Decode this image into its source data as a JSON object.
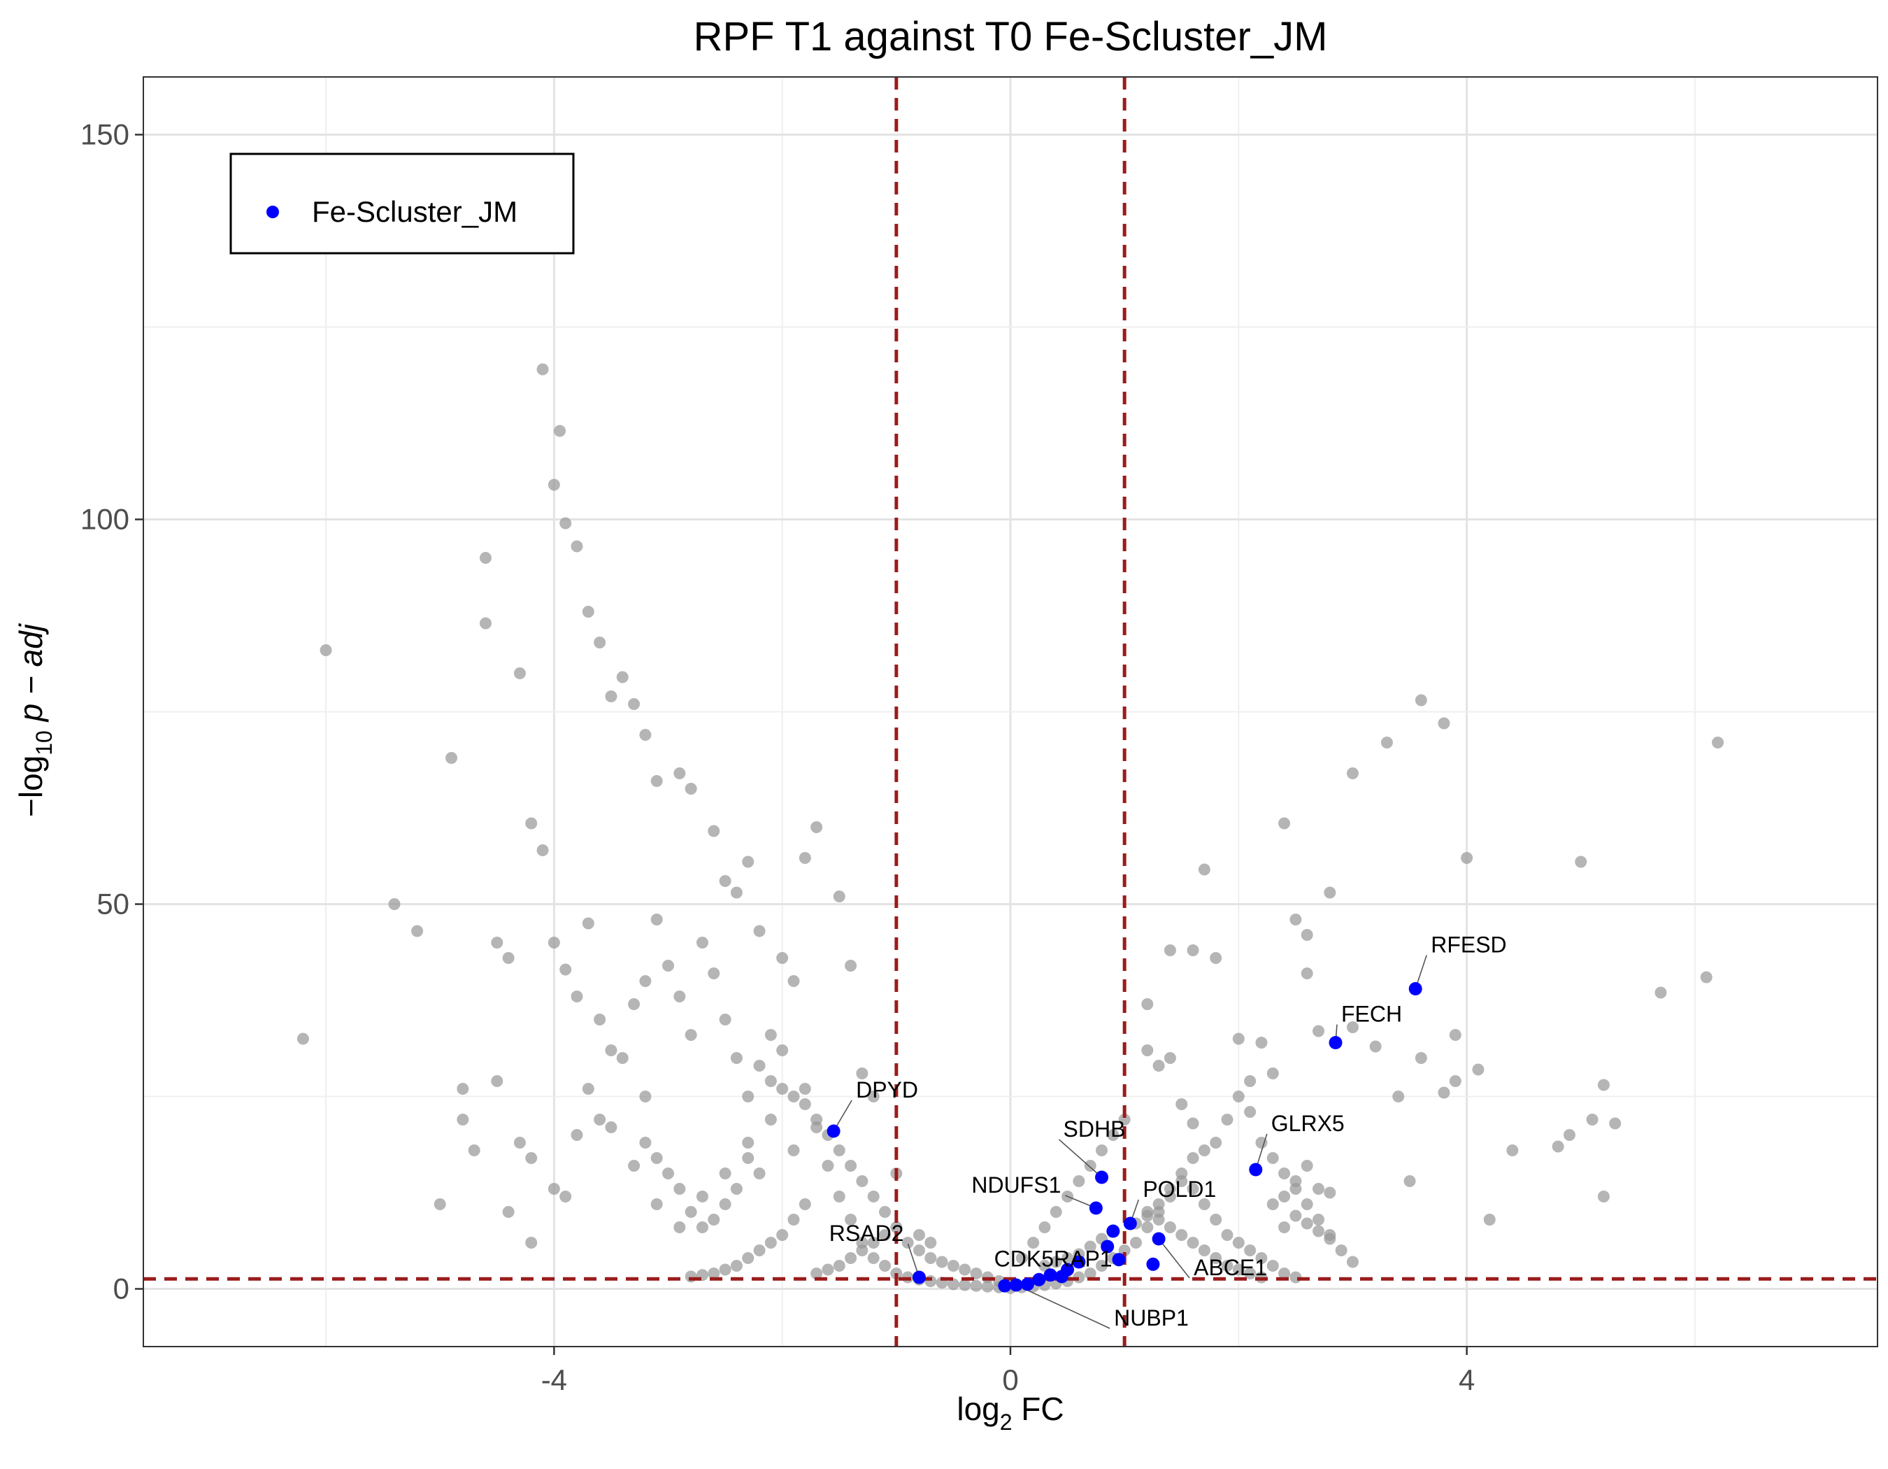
{
  "chart_data": {
    "type": "scatter",
    "title": "RPF T1 against T0 Fe-Scluster_JM",
    "xlabel": {
      "prefix": "log",
      "sub": "2",
      "suffix": " FC"
    },
    "ylabel": {
      "prefix": "−log",
      "sub": "10",
      "suffix": " p − adj"
    },
    "xlim": [
      -7.6,
      7.6
    ],
    "ylim": [
      -7.5,
      157.5
    ],
    "x_ticks": [
      -4,
      0,
      4
    ],
    "x_tick_labels": [
      "-4",
      "0",
      "4"
    ],
    "y_ticks": [
      0,
      50,
      100,
      150
    ],
    "y_tick_labels": [
      "0",
      "50",
      "100",
      "150"
    ],
    "grid": true,
    "thresholds": {
      "x": [
        -1,
        1
      ],
      "y": 1.3,
      "color": "#9b1b1b"
    },
    "legend": {
      "position": "top-left",
      "entries": [
        {
          "name": "Fe-Scluster_JM",
          "color": "#0000ff"
        }
      ]
    },
    "background_color": "#999999",
    "highlight_color": "#0000ff",
    "background_points": [
      [
        -6.2,
        32.5
      ],
      [
        -6.0,
        83
      ],
      [
        -5.4,
        50
      ],
      [
        -5.2,
        46.5
      ],
      [
        -4.9,
        69
      ],
      [
        -4.8,
        26
      ],
      [
        -5.0,
        11
      ],
      [
        -4.6,
        95
      ],
      [
        -4.5,
        45
      ],
      [
        -4.4,
        43
      ],
      [
        -4.2,
        60.5
      ],
      [
        -4.1,
        57
      ],
      [
        -4.1,
        119.5
      ],
      [
        -4.0,
        104.5
      ],
      [
        -3.95,
        111.5
      ],
      [
        -3.9,
        99.5
      ],
      [
        -3.8,
        96.5
      ],
      [
        -3.7,
        88
      ],
      [
        -3.6,
        84
      ],
      [
        -3.5,
        77
      ],
      [
        -3.4,
        79.5
      ],
      [
        -3.3,
        76
      ],
      [
        -3.2,
        72
      ],
      [
        -3.1,
        66
      ],
      [
        -2.9,
        67
      ],
      [
        -2.8,
        65
      ],
      [
        -2.6,
        59.5
      ],
      [
        -2.5,
        53
      ],
      [
        -2.4,
        51.5
      ],
      [
        -2.3,
        55.5
      ],
      [
        -2.2,
        46.5
      ],
      [
        -2.0,
        43
      ],
      [
        -1.9,
        40
      ],
      [
        -1.8,
        56
      ],
      [
        -1.7,
        60
      ],
      [
        -1.5,
        51
      ],
      [
        -1.4,
        42
      ],
      [
        -1.3,
        28
      ],
      [
        -1.2,
        25
      ],
      [
        -1.0,
        15
      ],
      [
        -4.5,
        27
      ],
      [
        -4.3,
        19
      ],
      [
        -4.2,
        17
      ],
      [
        -4.0,
        13
      ],
      [
        -3.9,
        12
      ],
      [
        -3.8,
        20
      ],
      [
        -3.6,
        22
      ],
      [
        -3.5,
        31
      ],
      [
        -3.3,
        37
      ],
      [
        -3.2,
        40
      ],
      [
        -3.1,
        48
      ],
      [
        -3.0,
        42
      ],
      [
        -2.9,
        38
      ],
      [
        -2.8,
        33
      ],
      [
        -2.7,
        45
      ],
      [
        -2.6,
        41
      ],
      [
        -2.5,
        35
      ],
      [
        -2.4,
        30
      ],
      [
        -2.3,
        25
      ],
      [
        -2.2,
        29
      ],
      [
        -2.1,
        33
      ],
      [
        -2.0,
        31
      ],
      [
        -3.9,
        41.5
      ],
      [
        -3.7,
        47.5
      ],
      [
        -4.6,
        86.5
      ],
      [
        -4.3,
        80
      ],
      [
        -4.0,
        45
      ],
      [
        -3.8,
        38
      ],
      [
        -3.6,
        35
      ],
      [
        -3.4,
        30
      ],
      [
        -3.2,
        25
      ],
      [
        -4.8,
        22
      ],
      [
        -4.7,
        18
      ],
      [
        -4.4,
        10
      ],
      [
        -4.2,
        6
      ],
      [
        -3.7,
        26
      ],
      [
        -3.5,
        21
      ],
      [
        -3.3,
        16
      ],
      [
        -3.1,
        11
      ],
      [
        -2.9,
        8
      ],
      [
        -2.7,
        12
      ],
      [
        -2.5,
        15
      ],
      [
        -2.3,
        19
      ],
      [
        -2.1,
        22
      ],
      [
        -1.9,
        18
      ],
      [
        -1.8,
        26
      ],
      [
        -1.7,
        21
      ],
      [
        -1.6,
        16
      ],
      [
        -1.5,
        12
      ],
      [
        -1.4,
        9
      ],
      [
        -1.3,
        6
      ],
      [
        -1.2,
        4
      ],
      [
        -1.1,
        3
      ],
      [
        -1.0,
        2
      ],
      [
        -0.9,
        1.5
      ],
      [
        -0.8,
        1.2
      ],
      [
        -0.7,
        1
      ],
      [
        -0.6,
        0.8
      ],
      [
        -0.5,
        0.6
      ],
      [
        -0.4,
        0.5
      ],
      [
        -0.3,
        0.4
      ],
      [
        -0.2,
        0.3
      ],
      [
        -0.1,
        0.2
      ],
      [
        0.0,
        0.1
      ],
      [
        0.1,
        0.2
      ],
      [
        0.2,
        0.3
      ],
      [
        0.3,
        0.5
      ],
      [
        0.4,
        0.7
      ],
      [
        0.5,
        1
      ],
      [
        0.6,
        1.5
      ],
      [
        0.7,
        2
      ],
      [
        0.8,
        3
      ],
      [
        0.9,
        4
      ],
      [
        1.0,
        5
      ],
      [
        1.1,
        6
      ],
      [
        1.2,
        8
      ],
      [
        1.3,
        10
      ],
      [
        1.4,
        12
      ],
      [
        1.5,
        14
      ],
      [
        1.6,
        13
      ],
      [
        1.7,
        11
      ],
      [
        1.8,
        9
      ],
      [
        1.9,
        7
      ],
      [
        2.0,
        6
      ],
      [
        2.1,
        5
      ],
      [
        2.2,
        4
      ],
      [
        2.3,
        3
      ],
      [
        2.4,
        2
      ],
      [
        2.5,
        1.5
      ],
      [
        1.8,
        19
      ],
      [
        1.9,
        22
      ],
      [
        2.0,
        25
      ],
      [
        2.1,
        23
      ],
      [
        2.2,
        19
      ],
      [
        2.3,
        17
      ],
      [
        2.4,
        15
      ],
      [
        2.5,
        13
      ],
      [
        2.6,
        11
      ],
      [
        2.7,
        9
      ],
      [
        2.8,
        7
      ],
      [
        2.9,
        5
      ],
      [
        3.0,
        3.5
      ],
      [
        1.7,
        54.5
      ],
      [
        1.6,
        44
      ],
      [
        1.8,
        43
      ],
      [
        2.4,
        60.5
      ],
      [
        2.5,
        48
      ],
      [
        2.6,
        46
      ],
      [
        2.8,
        51.5
      ],
      [
        3.0,
        67
      ],
      [
        3.3,
        71
      ],
      [
        3.6,
        76.5
      ],
      [
        3.8,
        73.5
      ],
      [
        4.0,
        56
      ],
      [
        3.0,
        34
      ],
      [
        3.2,
        31.5
      ],
      [
        3.4,
        25
      ],
      [
        3.6,
        30
      ],
      [
        3.9,
        33
      ],
      [
        4.1,
        28.5
      ],
      [
        3.9,
        27
      ],
      [
        4.2,
        9
      ],
      [
        5.0,
        55.5
      ],
      [
        5.1,
        22
      ],
      [
        5.2,
        26.5
      ],
      [
        5.3,
        21.5
      ],
      [
        5.2,
        12
      ],
      [
        4.9,
        20
      ],
      [
        4.8,
        18.5
      ],
      [
        4.4,
        18
      ],
      [
        5.7,
        38.5
      ],
      [
        6.1,
        40.5
      ],
      [
        6.2,
        71
      ],
      [
        3.5,
        14
      ],
      [
        3.8,
        25.5
      ],
      [
        1.4,
        44
      ],
      [
        1.4,
        30
      ],
      [
        1.3,
        29
      ],
      [
        1.2,
        31
      ],
      [
        1.5,
        24
      ],
      [
        1.6,
        21.5
      ],
      [
        2.0,
        32.5
      ],
      [
        2.2,
        32
      ],
      [
        2.3,
        28
      ],
      [
        2.1,
        27
      ],
      [
        2.6,
        41
      ],
      [
        2.7,
        33.5
      ],
      [
        1.2,
        37
      ],
      [
        1.0,
        22
      ],
      [
        0.9,
        20
      ],
      [
        0.8,
        18
      ],
      [
        0.7,
        16
      ],
      [
        0.6,
        14
      ],
      [
        0.5,
        12
      ],
      [
        0.4,
        10
      ],
      [
        0.3,
        8
      ],
      [
        0.2,
        6
      ],
      [
        0.1,
        4
      ],
      [
        -1.1,
        10
      ],
      [
        -1.2,
        12
      ],
      [
        -1.3,
        14
      ],
      [
        -1.4,
        16
      ],
      [
        -1.5,
        18
      ],
      [
        -1.6,
        20
      ],
      [
        -1.7,
        22
      ],
      [
        -1.8,
        24
      ],
      [
        -1.9,
        25
      ],
      [
        -2.0,
        26
      ],
      [
        -2.1,
        27
      ],
      [
        -1.8,
        11
      ],
      [
        -1.9,
        9
      ],
      [
        -2.0,
        7
      ],
      [
        -2.1,
        6
      ],
      [
        -2.2,
        5
      ],
      [
        -2.3,
        4
      ],
      [
        -2.4,
        3
      ],
      [
        -2.5,
        2.5
      ],
      [
        -2.6,
        2
      ],
      [
        -2.7,
        1.8
      ],
      [
        -2.8,
        1.6
      ],
      [
        -0.8,
        5
      ],
      [
        -0.7,
        4
      ],
      [
        -0.6,
        3.5
      ],
      [
        -0.5,
        3
      ],
      [
        -0.4,
        2.5
      ],
      [
        -0.3,
        2
      ],
      [
        -0.2,
        1.5
      ],
      [
        -0.1,
        1
      ],
      [
        0.3,
        3
      ],
      [
        0.4,
        3.5
      ],
      [
        0.5,
        4
      ],
      [
        0.6,
        4.5
      ],
      [
        0.7,
        5.5
      ],
      [
        0.8,
        6.5
      ],
      [
        0.9,
        7.5
      ],
      [
        1.1,
        8.5
      ],
      [
        1.2,
        9.5
      ],
      [
        1.3,
        11
      ],
      [
        1.4,
        13
      ],
      [
        1.5,
        15
      ],
      [
        1.6,
        17
      ],
      [
        1.7,
        18
      ],
      [
        -1.0,
        8
      ],
      [
        -1.1,
        7
      ],
      [
        -1.2,
        6
      ],
      [
        -1.3,
        5
      ],
      [
        -1.4,
        4
      ],
      [
        -1.5,
        3
      ],
      [
        -1.6,
        2.5
      ],
      [
        -1.7,
        2
      ],
      [
        -0.9,
        6
      ],
      [
        -0.8,
        7
      ],
      [
        -0.7,
        6
      ],
      [
        -2.2,
        15
      ],
      [
        -2.3,
        17
      ],
      [
        -2.4,
        13
      ],
      [
        -2.5,
        11
      ],
      [
        -2.6,
        9
      ],
      [
        -2.7,
        8
      ],
      [
        -2.8,
        10
      ],
      [
        -2.9,
        13
      ],
      [
        -3.0,
        15
      ],
      [
        -3.1,
        17
      ],
      [
        -3.2,
        19
      ],
      [
        1.9,
        3
      ],
      [
        2.0,
        2.5
      ],
      [
        2.1,
        2
      ],
      [
        2.2,
        1.5
      ],
      [
        1.8,
        4
      ],
      [
        1.7,
        5
      ],
      [
        1.6,
        6
      ],
      [
        1.5,
        7
      ],
      [
        1.4,
        8
      ],
      [
        1.3,
        9
      ],
      [
        1.2,
        10
      ],
      [
        2.4,
        8
      ],
      [
        2.5,
        9.5
      ],
      [
        2.6,
        8.5
      ],
      [
        2.7,
        7.5
      ],
      [
        2.8,
        6.5
      ],
      [
        2.3,
        11
      ],
      [
        2.4,
        12
      ],
      [
        2.5,
        14
      ],
      [
        2.6,
        16
      ],
      [
        2.7,
        13
      ],
      [
        2.8,
        12.5
      ]
    ],
    "highlight_points": [
      {
        "x": 3.55,
        "y": 39,
        "label": "RFESD"
      },
      {
        "x": 2.85,
        "y": 32,
        "label": "FECH"
      },
      {
        "x": -1.55,
        "y": 20.5,
        "label": "DPYD"
      },
      {
        "x": 0.8,
        "y": 14.5,
        "label": "SDHB"
      },
      {
        "x": 2.15,
        "y": 15.5,
        "label": "GLRX5"
      },
      {
        "x": 0.75,
        "y": 10.5,
        "label": "NDUFS1"
      },
      {
        "x": 1.05,
        "y": 8.5,
        "label": "POLD1"
      },
      {
        "x": 1.3,
        "y": 6.5,
        "label": "ABCE1"
      },
      {
        "x": -0.8,
        "y": 1.5,
        "label": "RSAD2"
      },
      {
        "x": 0.35,
        "y": 1.8,
        "label": "CDK5RAP1"
      },
      {
        "x": 0.05,
        "y": 0.5,
        "label": "NUBP1"
      },
      {
        "x": 0.9,
        "y": 7.5,
        "label": ""
      },
      {
        "x": 0.85,
        "y": 5.5,
        "label": ""
      },
      {
        "x": 0.6,
        "y": 3.5,
        "label": ""
      },
      {
        "x": 0.5,
        "y": 2.5,
        "label": ""
      },
      {
        "x": 0.45,
        "y": 1.6,
        "label": ""
      },
      {
        "x": 0.25,
        "y": 1.2,
        "label": ""
      },
      {
        "x": -0.05,
        "y": 0.4,
        "label": ""
      },
      {
        "x": 0.15,
        "y": 0.6,
        "label": ""
      },
      {
        "x": 0.95,
        "y": 3.8,
        "label": ""
      },
      {
        "x": 1.25,
        "y": 3.2,
        "label": ""
      }
    ]
  }
}
